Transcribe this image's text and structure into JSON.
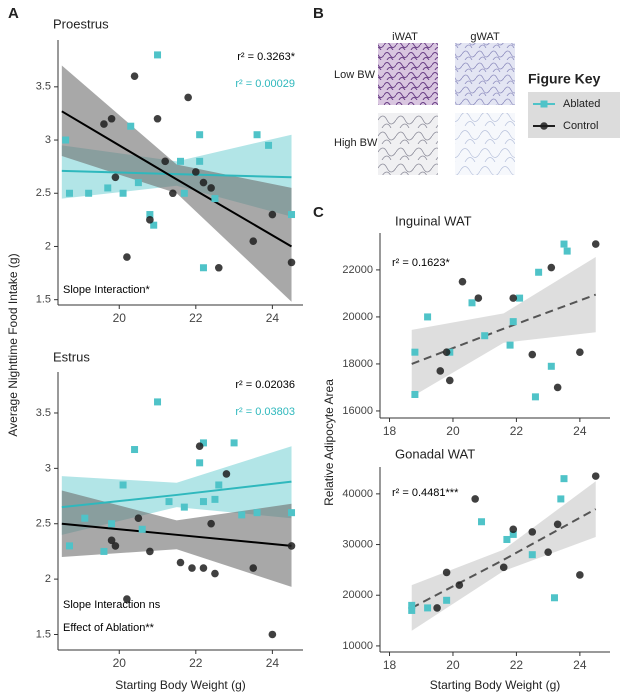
{
  "panel_labels": [
    "A",
    "B",
    "C"
  ],
  "histology": {
    "columns": [
      "iWAT",
      "gWAT"
    ],
    "rows": [
      "Low BW",
      "High BW"
    ]
  },
  "figure_key": {
    "title": "Figure Key"
  },
  "chart_data": [
    {
      "type": "scatter",
      "title": "Proestrus",
      "ylabel": "Average Nighttime Food Intake (g)",
      "xlim": [
        18.4,
        24.8
      ],
      "ylim": [
        1.45,
        3.94
      ],
      "xticks": [
        20,
        22,
        24
      ],
      "yticks": [
        1.5,
        2.0,
        2.5,
        3.0,
        3.5
      ],
      "series": [
        {
          "name": "Ablated",
          "color": "#4fc3c8",
          "marker": "square",
          "x": [
            18.6,
            18.7,
            19.2,
            19.7,
            20.1,
            20.3,
            20.5,
            20.8,
            20.9,
            21.0,
            21.6,
            21.7,
            22.1,
            22.1,
            22.2,
            22.5,
            23.6,
            23.9,
            24.5
          ],
          "values": [
            3.0,
            2.5,
            2.5,
            2.55,
            2.5,
            3.13,
            2.6,
            2.3,
            2.2,
            3.8,
            2.8,
            2.5,
            2.8,
            3.05,
            1.8,
            2.45,
            3.05,
            2.95,
            2.3
          ]
        },
        {
          "name": "Control",
          "color": "#1e1e1e",
          "marker": "circle",
          "x": [
            19.6,
            19.8,
            19.9,
            20.2,
            20.4,
            20.8,
            21.0,
            21.2,
            21.4,
            21.8,
            22.0,
            22.2,
            22.4,
            22.6,
            23.5,
            24.0,
            24.5
          ],
          "values": [
            3.15,
            3.2,
            2.65,
            1.9,
            3.6,
            2.25,
            3.2,
            2.8,
            2.5,
            3.4,
            2.7,
            2.6,
            2.55,
            1.8,
            2.05,
            2.3,
            1.85
          ]
        }
      ],
      "fits": [
        {
          "color": "#2fb8bd",
          "band_color": "#7fd3d7",
          "dashed": false,
          "x": [
            18.5,
            21.5,
            24.5
          ],
          "values": [
            2.71,
            2.68,
            2.65
          ],
          "ci_lower": [
            2.45,
            2.57,
            2.28
          ],
          "ci_upper": [
            2.95,
            2.8,
            3.05
          ]
        },
        {
          "color": "#000000",
          "band_color": "#6e6e6e",
          "dashed": false,
          "x": [
            18.5,
            21.5,
            24.5
          ],
          "values": [
            3.27,
            2.63,
            2.0
          ],
          "ci_lower": [
            2.85,
            2.5,
            1.48
          ],
          "ci_upper": [
            3.7,
            2.77,
            2.55
          ]
        }
      ],
      "annotations": [
        {
          "text": "r² = 0.3263*",
          "color": "#000000"
        },
        {
          "text": "r² = 0.00029",
          "color": "#2fb8bd"
        },
        {
          "text": "Slope Interaction*",
          "color": "#000000"
        }
      ]
    },
    {
      "type": "scatter",
      "title": "Estrus",
      "xlabel": "Starting Body Weight (g)",
      "xlim": [
        18.4,
        24.8
      ],
      "ylim": [
        1.36,
        3.87
      ],
      "xticks": [
        20,
        22,
        24
      ],
      "yticks": [
        1.5,
        2.0,
        2.5,
        3.0,
        3.5
      ],
      "series": [
        {
          "color": "#4fc3c8",
          "marker": "square",
          "x": [
            18.7,
            19.1,
            19.6,
            19.8,
            20.1,
            20.4,
            20.6,
            21.0,
            21.3,
            21.7,
            22.1,
            22.2,
            22.2,
            22.5,
            22.6,
            23.0,
            23.2,
            23.6,
            24.5
          ],
          "values": [
            2.3,
            2.55,
            2.25,
            2.5,
            2.85,
            3.17,
            2.45,
            3.6,
            2.7,
            2.65,
            3.05,
            3.23,
            2.7,
            2.72,
            2.85,
            3.23,
            2.58,
            2.6,
            2.6
          ]
        },
        {
          "color": "#1e1e1e",
          "marker": "circle",
          "x": [
            19.8,
            19.9,
            20.2,
            20.5,
            20.8,
            21.6,
            21.9,
            22.1,
            22.2,
            22.4,
            22.5,
            22.8,
            23.5,
            24.0,
            24.5
          ],
          "values": [
            2.35,
            2.3,
            1.82,
            2.55,
            2.25,
            2.15,
            2.1,
            3.2,
            2.1,
            2.5,
            2.05,
            2.95,
            2.1,
            1.5,
            2.3
          ]
        }
      ],
      "fits": [
        {
          "color": "#2fb8bd",
          "band_color": "#7fd3d7",
          "dashed": false,
          "x": [
            18.5,
            21.5,
            24.5
          ],
          "values": [
            2.65,
            2.76,
            2.88
          ],
          "ci_lower": [
            2.4,
            2.65,
            2.55
          ],
          "ci_upper": [
            2.93,
            2.87,
            3.2
          ]
        },
        {
          "color": "#000000",
          "band_color": "#6e6e6e",
          "dashed": false,
          "x": [
            18.5,
            21.5,
            24.5
          ],
          "values": [
            2.5,
            2.4,
            2.3
          ],
          "ci_lower": [
            2.2,
            2.27,
            1.93
          ],
          "ci_upper": [
            2.8,
            2.53,
            2.68
          ]
        }
      ],
      "annotations": [
        {
          "text": "r² = 0.02036",
          "color": "#000000"
        },
        {
          "text": "r² = 0.03803",
          "color": "#2fb8bd"
        },
        {
          "text": "Slope Interaction ns",
          "color": "#000000"
        },
        {
          "text": "Effect of Ablation**",
          "color": "#000000"
        }
      ]
    },
    {
      "type": "scatter",
      "title": "Inguinal WAT",
      "ylabel": "Relative Adipocyte Area",
      "xlim": [
        17.7,
        24.95
      ],
      "ylim": [
        15700,
        23570
      ],
      "xticks": [
        18,
        20,
        22,
        24
      ],
      "yticks": [
        16000,
        18000,
        20000,
        22000
      ],
      "series": [
        {
          "color": "#4fc3c8",
          "marker": "square",
          "x": [
            18.8,
            18.8,
            19.2,
            19.9,
            20.6,
            21.0,
            21.8,
            21.9,
            22.1,
            22.6,
            22.7,
            23.1,
            23.5,
            23.6
          ],
          "values": [
            18500,
            16700,
            20000,
            18500,
            20600,
            19200,
            18800,
            19800,
            20800,
            16600,
            21900,
            17900,
            23100,
            22800
          ]
        },
        {
          "color": "#1e1e1e",
          "marker": "circle",
          "x": [
            19.6,
            19.8,
            19.9,
            20.3,
            20.8,
            21.9,
            22.5,
            23.1,
            23.3,
            24.0,
            24.5
          ],
          "values": [
            17700,
            18500,
            17300,
            21500,
            20800,
            20800,
            18400,
            22100,
            17000,
            18500,
            23100
          ]
        }
      ],
      "fits": [
        {
          "color": "#555555",
          "band_color": "#c8c8c8",
          "dashed": true,
          "x": [
            18.7,
            21.6,
            24.5
          ],
          "values": [
            18000,
            19500,
            20950
          ],
          "ci_lower": [
            16600,
            18900,
            19350
          ],
          "ci_upper": [
            19450,
            20150,
            22550
          ]
        }
      ],
      "annotations": [
        {
          "text": "r² = 0.1623*",
          "color": "#000000"
        }
      ]
    },
    {
      "type": "scatter",
      "title": "Gonadal WAT",
      "xlabel": "Starting Body Weight (g)",
      "xlim": [
        17.7,
        24.95
      ],
      "ylim": [
        8800,
        45300
      ],
      "xticks": [
        18,
        20,
        22,
        24
      ],
      "yticks": [
        10000,
        20000,
        30000,
        40000
      ],
      "series": [
        {
          "color": "#4fc3c8",
          "marker": "square",
          "x": [
            18.7,
            18.7,
            19.2,
            19.8,
            20.9,
            21.7,
            21.9,
            22.5,
            23.2,
            23.4,
            23.5
          ],
          "values": [
            18000,
            17000,
            17500,
            19000,
            34500,
            31000,
            32000,
            28000,
            19500,
            39000,
            43000
          ]
        },
        {
          "color": "#1e1e1e",
          "marker": "circle",
          "x": [
            19.5,
            19.8,
            20.2,
            20.7,
            21.6,
            21.9,
            22.5,
            23.0,
            23.3,
            24.0,
            24.5
          ],
          "values": [
            17500,
            24500,
            22000,
            39000,
            25500,
            33000,
            32500,
            28500,
            34000,
            24000,
            43500
          ]
        }
      ],
      "fits": [
        {
          "color": "#555555",
          "band_color": "#c8c8c8",
          "dashed": true,
          "x": [
            18.7,
            21.6,
            24.5
          ],
          "values": [
            17500,
            27000,
            37000
          ],
          "ci_lower": [
            13000,
            24800,
            31500
          ],
          "ci_upper": [
            22000,
            29000,
            42500
          ]
        }
      ],
      "annotations": [
        {
          "text": "r² = 0.4481***",
          "color": "#000000"
        }
      ]
    }
  ]
}
